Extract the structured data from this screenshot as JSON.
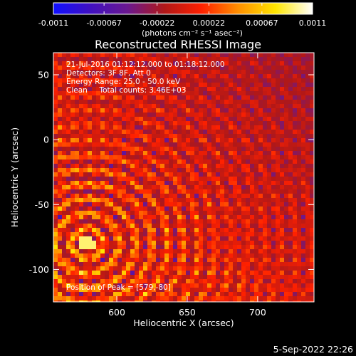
{
  "chart_data": {
    "type": "heatmap",
    "title": "Reconstructed RHESSI Image",
    "xlabel": "Heliocentric X (arcsec)",
    "ylabel": "Heliocentric Y (arcsec)",
    "xlim": [
      555,
      740
    ],
    "ylim": [
      -125,
      67
    ],
    "x_ticks": [
      600,
      650,
      700
    ],
    "y_ticks": [
      50,
      0,
      -50,
      -100
    ],
    "colorbar": {
      "range": [
        -0.0011,
        0.0011
      ],
      "tick_labels": [
        "-0.0011",
        "-0.00067",
        "-0.00022",
        "0.00022",
        "0.00067",
        "0.0011"
      ],
      "units_label": "(photons cm⁻² s⁻¹ asec⁻²)",
      "colors": [
        "#1010ff",
        "#4010c0",
        "#6a1890",
        "#b01818",
        "#ff2000",
        "#ff9000",
        "#ffe600",
        "#ffffff"
      ]
    },
    "info_lines": [
      "21-Jul-2016 01:12:12.000 to 01:18:12.000",
      "Detectors: 3F 8F, Att 0",
      "Energy Range: 25.0 - 50.0 keV",
      "Clean     Total counts: 3.46E+03"
    ],
    "peak_label": "Position of Peak = [579,-80]",
    "peak_position": [
      579,
      -80
    ]
  },
  "footer": {
    "timestamp": "5-Sep-2022 22:26"
  }
}
